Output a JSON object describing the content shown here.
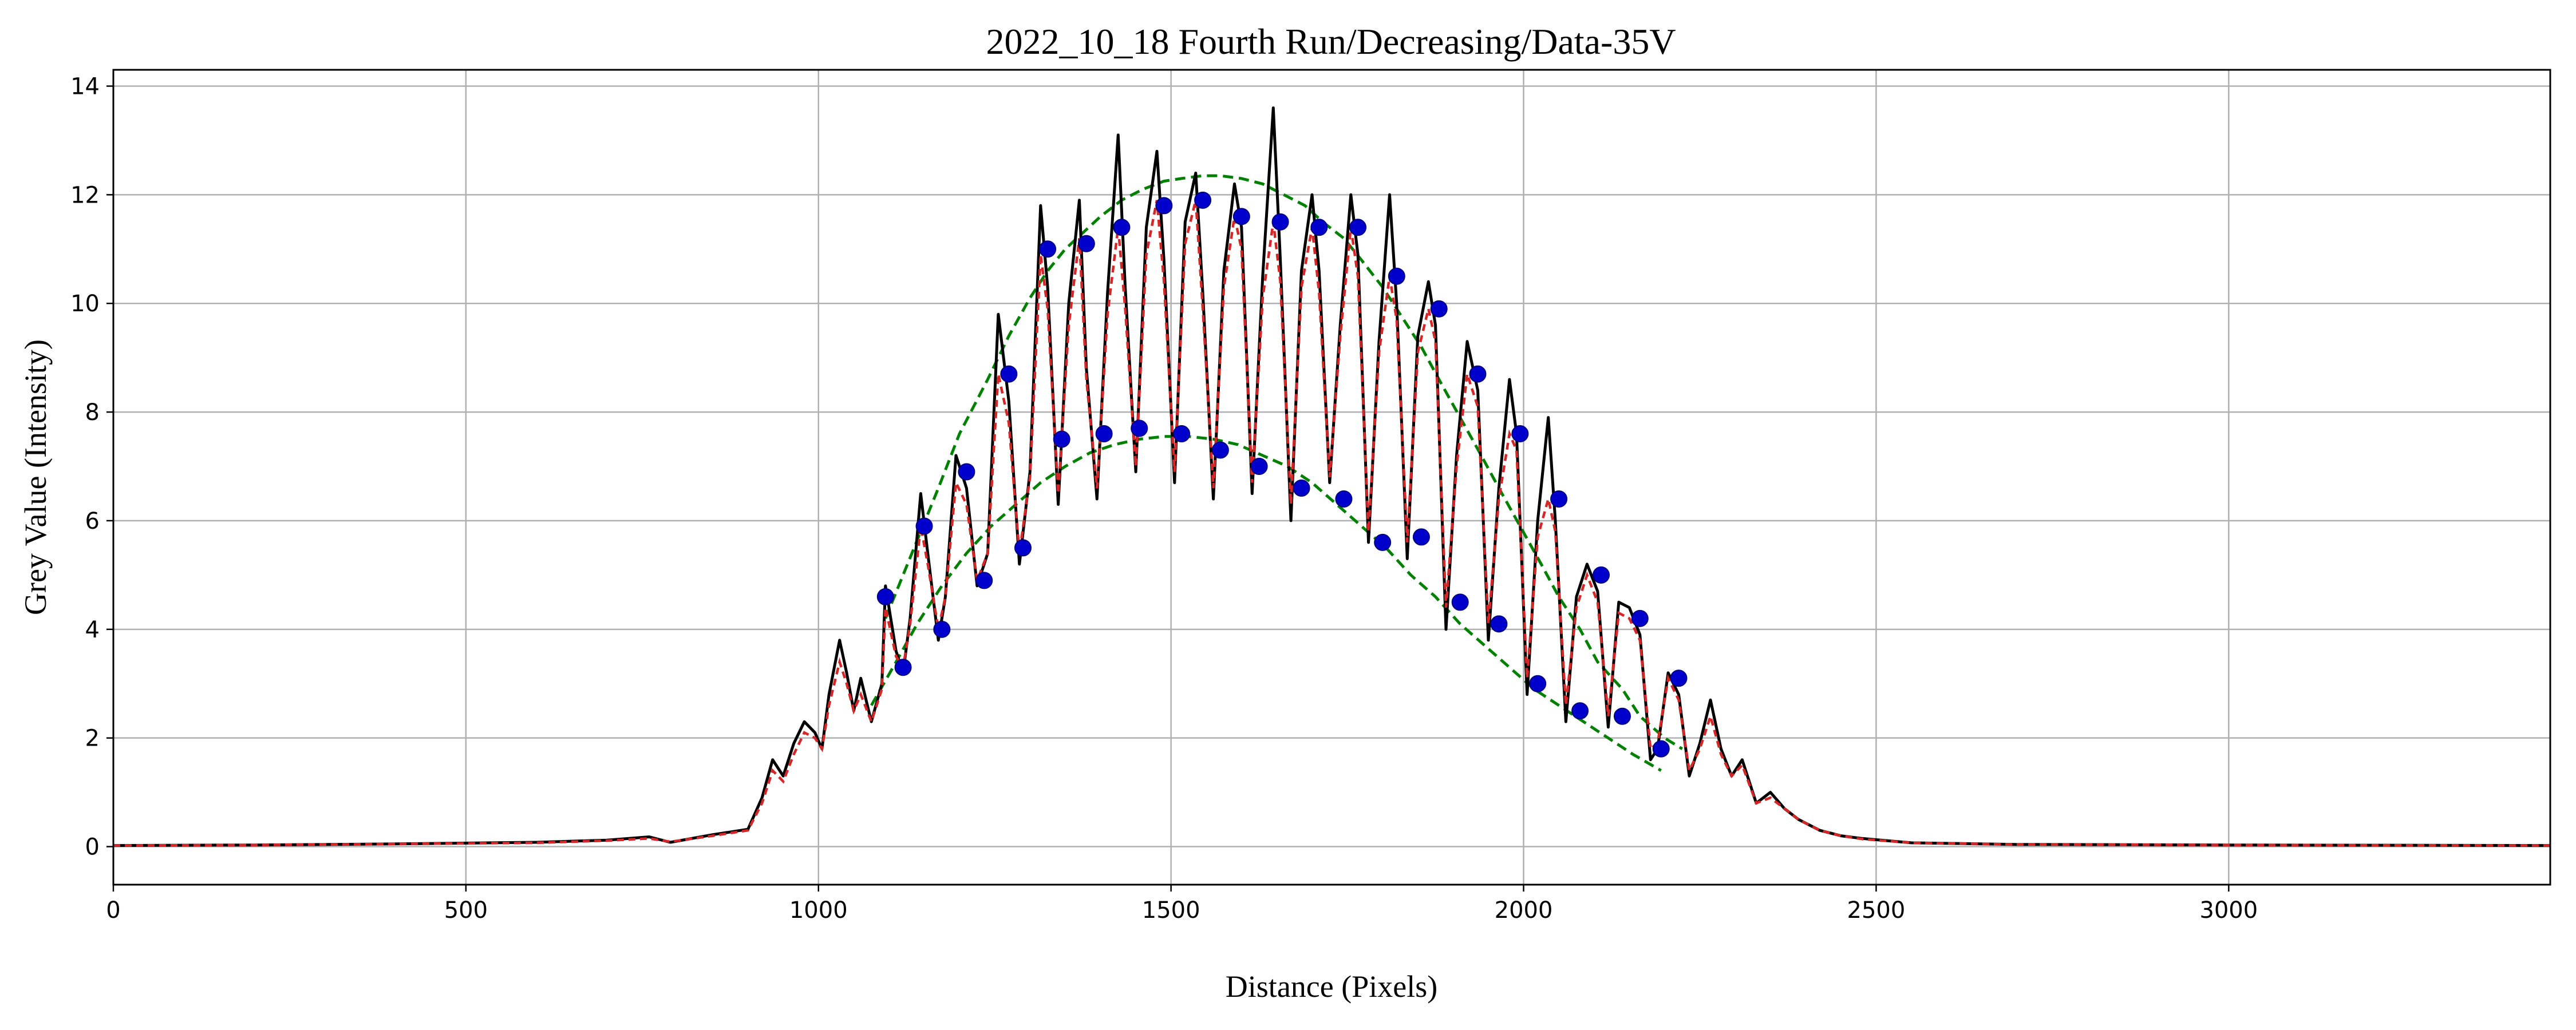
{
  "chart_data": {
    "type": "line",
    "title": "2022_10_18 Fourth Run/Decreasing/Data-35V",
    "xlabel": "Distance (Pixels)",
    "ylabel": "Grey Value (Intensity)",
    "xlim": [
      0,
      3456
    ],
    "ylim": [
      -0.7,
      14.3
    ],
    "xticks": [
      0,
      500,
      1000,
      1500,
      2000,
      2500,
      3000
    ],
    "yticks": [
      0,
      2,
      4,
      6,
      8,
      10,
      12,
      14
    ],
    "grid": true,
    "legend": "none",
    "colors": {
      "raw": "#000000",
      "smoothed": "#d62728",
      "fit": "#008000",
      "peaks": "#0000cc",
      "grid": "#b0b0b0"
    },
    "series": [
      {
        "role": "raw-profile",
        "style": "solid",
        "x": [
          0,
          200,
          400,
          600,
          700,
          760,
          790,
          850,
          900,
          920,
          935,
          950,
          965,
          980,
          995,
          1005,
          1015,
          1030,
          1040,
          1050,
          1060,
          1075,
          1090,
          1095,
          1110,
          1120,
          1130,
          1145,
          1155,
          1170,
          1180,
          1195,
          1210,
          1225,
          1240,
          1255,
          1270,
          1285,
          1300,
          1315,
          1325,
          1340,
          1355,
          1370,
          1380,
          1395,
          1410,
          1425,
          1435,
          1450,
          1465,
          1480,
          1490,
          1505,
          1520,
          1535,
          1545,
          1560,
          1575,
          1590,
          1600,
          1615,
          1630,
          1645,
          1655,
          1670,
          1685,
          1700,
          1710,
          1725,
          1740,
          1755,
          1765,
          1780,
          1795,
          1810,
          1820,
          1835,
          1850,
          1865,
          1875,
          1890,
          1905,
          1920,
          1935,
          1950,
          1965,
          1980,
          1990,
          2005,
          2020,
          2035,
          2045,
          2060,
          2075,
          2090,
          2105,
          2120,
          2135,
          2150,
          2165,
          2180,
          2190,
          2205,
          2220,
          2235,
          2250,
          2265,
          2280,
          2295,
          2310,
          2330,
          2350,
          2370,
          2390,
          2420,
          2450,
          2480,
          2550,
          2700,
          3000,
          3456
        ],
        "y": [
          0.02,
          0.03,
          0.05,
          0.08,
          0.12,
          0.18,
          0.08,
          0.22,
          0.32,
          0.9,
          1.6,
          1.3,
          1.9,
          2.3,
          2.1,
          1.8,
          2.8,
          3.8,
          3.2,
          2.5,
          3.1,
          2.3,
          3.0,
          4.8,
          3.6,
          3.2,
          4.2,
          6.5,
          5.4,
          3.8,
          4.6,
          7.2,
          6.6,
          4.8,
          5.4,
          9.8,
          8.2,
          5.2,
          6.9,
          11.8,
          10.3,
          6.3,
          10.0,
          11.9,
          8.8,
          6.4,
          10.2,
          13.1,
          10.3,
          6.9,
          11.4,
          12.8,
          10.8,
          6.7,
          11.5,
          12.4,
          10.2,
          6.4,
          10.6,
          12.2,
          11.4,
          6.5,
          10.5,
          13.6,
          10.8,
          6.0,
          10.6,
          12.0,
          10.6,
          6.7,
          9.6,
          12.0,
          10.9,
          5.6,
          9.3,
          12.0,
          10.0,
          5.3,
          9.4,
          10.4,
          9.6,
          4.0,
          7.2,
          9.3,
          8.4,
          3.8,
          6.6,
          8.6,
          7.6,
          2.8,
          6.0,
          7.9,
          6.0,
          2.3,
          4.6,
          5.2,
          4.7,
          2.2,
          4.5,
          4.4,
          3.9,
          1.6,
          1.8,
          3.2,
          2.8,
          1.3,
          1.9,
          2.7,
          1.8,
          1.3,
          1.6,
          0.8,
          1.0,
          0.7,
          0.5,
          0.3,
          0.2,
          0.15,
          0.07,
          0.04,
          0.03,
          0.02
        ]
      },
      {
        "role": "smoothed-profile",
        "style": "dashed",
        "x": [
          0,
          200,
          400,
          600,
          700,
          760,
          790,
          850,
          900,
          920,
          935,
          950,
          965,
          980,
          995,
          1005,
          1015,
          1030,
          1040,
          1050,
          1060,
          1075,
          1090,
          1095,
          1110,
          1120,
          1130,
          1145,
          1155,
          1170,
          1180,
          1195,
          1210,
          1225,
          1240,
          1255,
          1270,
          1285,
          1300,
          1315,
          1325,
          1340,
          1355,
          1370,
          1380,
          1395,
          1410,
          1425,
          1435,
          1450,
          1465,
          1480,
          1490,
          1505,
          1520,
          1535,
          1545,
          1560,
          1575,
          1590,
          1600,
          1615,
          1630,
          1645,
          1655,
          1670,
          1685,
          1700,
          1710,
          1725,
          1740,
          1755,
          1765,
          1780,
          1795,
          1810,
          1820,
          1835,
          1850,
          1865,
          1875,
          1890,
          1905,
          1920,
          1935,
          1950,
          1965,
          1980,
          1990,
          2005,
          2020,
          2035,
          2045,
          2060,
          2075,
          2090,
          2105,
          2120,
          2135,
          2150,
          2165,
          2180,
          2190,
          2205,
          2220,
          2235,
          2250,
          2265,
          2280,
          2295,
          2310,
          2330,
          2350,
          2370,
          2390,
          2420,
          2450,
          2480,
          2550,
          2700,
          3000,
          3456
        ],
        "y": [
          0.02,
          0.03,
          0.05,
          0.07,
          0.11,
          0.15,
          0.09,
          0.2,
          0.3,
          0.8,
          1.4,
          1.2,
          1.7,
          2.1,
          2.0,
          1.8,
          2.6,
          3.4,
          3.0,
          2.5,
          2.8,
          2.3,
          2.9,
          4.4,
          3.5,
          3.3,
          4.1,
          5.9,
          5.2,
          4.0,
          4.6,
          6.7,
          6.3,
          4.9,
          5.4,
          8.7,
          7.8,
          5.4,
          6.8,
          10.9,
          9.9,
          6.5,
          9.6,
          11.2,
          8.6,
          6.6,
          9.8,
          11.4,
          9.9,
          7.0,
          10.9,
          11.9,
          10.4,
          6.9,
          11.1,
          11.9,
          9.9,
          6.6,
          10.3,
          11.6,
          11.0,
          6.7,
          10.1,
          11.5,
          10.4,
          6.3,
          10.3,
          11.4,
          10.2,
          6.8,
          9.4,
          11.4,
          10.5,
          5.8,
          9.1,
          10.5,
          9.7,
          5.6,
          9.1,
          9.9,
          9.3,
          4.4,
          7.0,
          8.7,
          8.1,
          4.1,
          6.4,
          7.6,
          7.3,
          3.1,
          5.7,
          6.4,
          5.8,
          2.6,
          4.4,
          5.0,
          4.5,
          2.4,
          4.3,
          4.2,
          3.8,
          1.8,
          1.9,
          3.1,
          2.7,
          1.4,
          1.8,
          2.4,
          1.7,
          1.3,
          1.5,
          0.8,
          0.9,
          0.7,
          0.5,
          0.3,
          0.2,
          0.14,
          0.07,
          0.04,
          0.03,
          0.02
        ]
      },
      {
        "role": "peak-fit",
        "style": "dashed",
        "x": [
          1095,
          1120,
          1145,
          1170,
          1200,
          1240,
          1270,
          1300,
          1325,
          1350,
          1375,
          1400,
          1430,
          1460,
          1490,
          1515,
          1545,
          1570,
          1600,
          1630,
          1660,
          1690,
          1715,
          1745,
          1770,
          1800,
          1825,
          1855,
          1880,
          1910,
          1940,
          1965,
          1995,
          2025,
          2050,
          2080,
          2105,
          2140,
          2165,
          2200,
          2225
        ],
        "y": [
          4.2,
          5.0,
          5.8,
          6.6,
          7.6,
          8.6,
          9.4,
          10.1,
          10.6,
          11.0,
          11.3,
          11.6,
          11.9,
          12.1,
          12.25,
          12.3,
          12.35,
          12.35,
          12.3,
          12.2,
          12.0,
          11.8,
          11.5,
          11.2,
          10.8,
          10.3,
          9.8,
          9.2,
          8.6,
          7.9,
          7.2,
          6.6,
          5.9,
          5.2,
          4.6,
          4.0,
          3.4,
          2.9,
          2.4,
          2.0,
          1.8
        ]
      },
      {
        "role": "valley-fit",
        "style": "dashed",
        "x": [
          1075,
          1110,
          1140,
          1175,
          1210,
          1245,
          1280,
          1315,
          1350,
          1385,
          1420,
          1455,
          1490,
          1525,
          1560,
          1595,
          1630,
          1665,
          1700,
          1735,
          1770,
          1805,
          1840,
          1875,
          1910,
          1945,
          1980,
          2015,
          2050,
          2085,
          2120,
          2155,
          2195
        ],
        "y": [
          2.6,
          3.4,
          4.1,
          4.8,
          5.4,
          5.9,
          6.3,
          6.7,
          7.0,
          7.25,
          7.4,
          7.5,
          7.55,
          7.55,
          7.5,
          7.4,
          7.2,
          7.0,
          6.7,
          6.3,
          5.9,
          5.5,
          5.0,
          4.6,
          4.1,
          3.7,
          3.3,
          2.9,
          2.6,
          2.3,
          2.0,
          1.7,
          1.4
        ]
      }
    ],
    "peaks": {
      "x": [
        1095,
        1150,
        1210,
        1270,
        1325,
        1380,
        1430,
        1490,
        1545,
        1600,
        1655,
        1710,
        1765,
        1820,
        1880,
        1935,
        1995,
        2050,
        2110,
        2165,
        2220
      ],
      "y": [
        4.6,
        5.9,
        6.9,
        8.7,
        11.0,
        11.1,
        11.4,
        11.8,
        11.9,
        11.6,
        11.5,
        11.4,
        11.4,
        10.5,
        9.9,
        8.7,
        7.6,
        6.4,
        5.0,
        4.2,
        3.1
      ]
    },
    "valleys": {
      "x": [
        1120,
        1175,
        1235,
        1290,
        1345,
        1405,
        1455,
        1515,
        1570,
        1625,
        1685,
        1745,
        1800,
        1855,
        1910,
        1965,
        2020,
        2080,
        2140,
        2195
      ],
      "y": [
        3.3,
        4.0,
        4.9,
        5.5,
        7.5,
        7.6,
        7.7,
        7.6,
        7.3,
        7.0,
        6.6,
        6.4,
        5.6,
        5.7,
        4.5,
        4.1,
        3.0,
        2.5,
        2.4,
        1.8
      ]
    }
  }
}
